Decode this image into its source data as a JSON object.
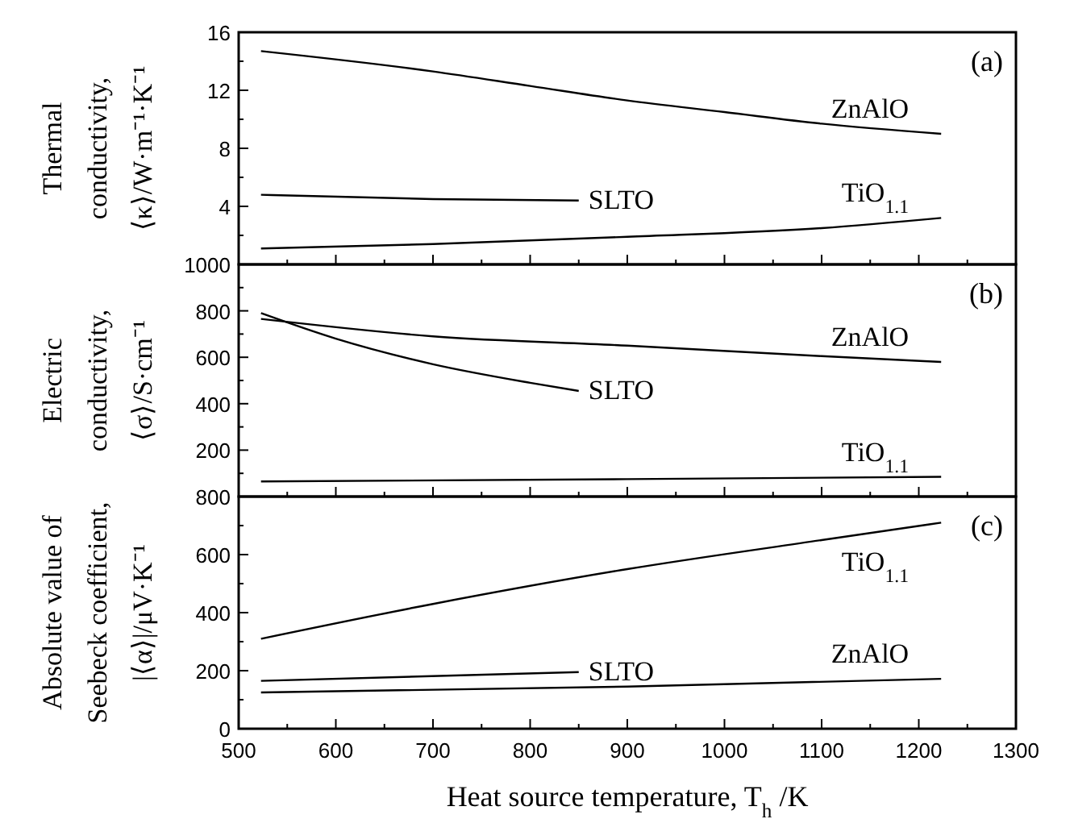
{
  "chart_data": [
    {
      "type": "line",
      "ylabel": "Thermal\nconductivity,\n⟨κ⟩/W·m⁻¹·K⁻¹",
      "annotations": [
        "(a)"
      ],
      "xlim": [
        500,
        1300
      ],
      "xticks": [
        500,
        600,
        700,
        800,
        900,
        1000,
        1100,
        1200,
        1300
      ],
      "ylim": [
        0,
        16
      ],
      "yticks": [
        {
          "value": 0,
          "label": null
        },
        4,
        8,
        12,
        16
      ],
      "tick_labels": "y",
      "series": [
        {
          "name": "ZnAlO",
          "color": "#000000",
          "x": [
            523,
            700,
            800,
            900,
            1000,
            1100,
            1223
          ],
          "values": [
            14.7,
            13.3,
            12.3,
            11.3,
            10.5,
            9.7,
            9.0
          ]
        },
        {
          "name": "SLTO",
          "color": "#000000",
          "x": [
            523,
            700,
            850
          ],
          "values": [
            4.8,
            4.5,
            4.4
          ]
        },
        {
          "name": "TiO$_{1.1}$",
          "color": "#000000",
          "x": [
            523,
            700,
            900,
            1100,
            1223
          ],
          "values": [
            1.1,
            1.4,
            1.9,
            2.5,
            3.2
          ]
        }
      ]
    },
    {
      "type": "line",
      "ylabel": "Electric\nconductivity,\n⟨σ⟩/S·cm⁻¹",
      "annotations": [
        "(b)"
      ],
      "xlim": [
        500,
        1300
      ],
      "xticks": [
        500,
        600,
        700,
        800,
        900,
        1000,
        1100,
        1200,
        1300
      ],
      "ylim": [
        0,
        1000
      ],
      "yticks": [
        {
          "value": 0,
          "label": null
        },
        200,
        400,
        600,
        800,
        1000
      ],
      "tick_labels": "y",
      "series": [
        {
          "name": "ZnAlO",
          "color": "#000000",
          "x": [
            523,
            700,
            900,
            1100,
            1223
          ],
          "values": [
            765,
            690,
            650,
            605,
            580
          ]
        },
        {
          "name": "SLTO",
          "color": "#000000",
          "x": [
            523,
            600,
            700,
            800,
            850
          ],
          "values": [
            790,
            680,
            570,
            490,
            455
          ]
        },
        {
          "name": "TiO$_{1.1}$",
          "color": "#000000",
          "x": [
            523,
            900,
            1223
          ],
          "values": [
            65,
            75,
            85
          ]
        }
      ]
    },
    {
      "type": "line",
      "ylabel": "Absolute value of\nSeebeck coefficient,\n|⟨α⟩|/μV·K⁻¹",
      "xlabel": "Heat source temperature, T$_{h}$/K",
      "annotations": [
        "(c)"
      ],
      "xlim": [
        500,
        1300
      ],
      "xticks": [
        500,
        600,
        700,
        800,
        900,
        1000,
        1100,
        1200,
        1300
      ],
      "ylim": [
        0,
        800
      ],
      "yticks": [
        0,
        200,
        400,
        600,
        800
      ],
      "series": [
        {
          "name": "TiO$_{1.1}$",
          "color": "#000000",
          "x": [
            523,
            700,
            900,
            1100,
            1223
          ],
          "values": [
            310,
            430,
            550,
            650,
            710
          ]
        },
        {
          "name": "SLTO",
          "color": "#000000",
          "x": [
            523,
            850
          ],
          "values": [
            165,
            195
          ]
        },
        {
          "name": "ZnAlO",
          "color": "#000000",
          "x": [
            523,
            900,
            1223
          ],
          "values": [
            125,
            145,
            172
          ]
        }
      ]
    }
  ]
}
